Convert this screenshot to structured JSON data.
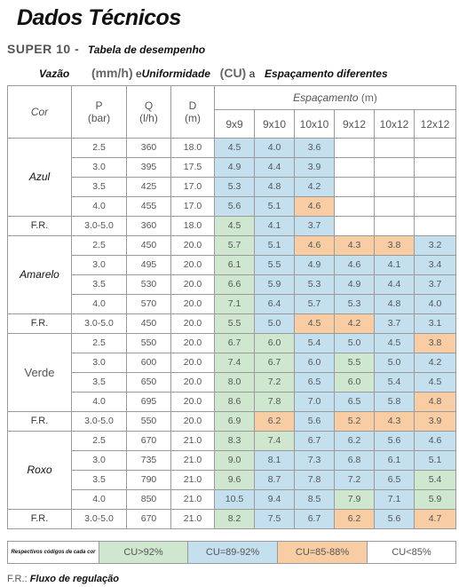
{
  "title": "Dados Técnicos",
  "model": "SUPER 10 -",
  "subtitle_desc": "Tabela de desempenho",
  "line2": {
    "vazao": "Vazão",
    "unit1": "(mm/h)",
    "e": "e",
    "uniformidade": "Uniformidade",
    "cu": "(CU)",
    "a": "a",
    "espacamento": "Espaçamento diferentes"
  },
  "headers": {
    "cor": "Cor",
    "p": "P",
    "p_unit": "(bar)",
    "q": "Q",
    "q_unit": "(l/h)",
    "d": "D",
    "d_unit": "(m)",
    "espacamento": "Espaçamento",
    "esp_unit": "(m)",
    "spacings": [
      "9x9",
      "9x10",
      "10x10",
      "9x12",
      "10x12",
      "12x12"
    ]
  },
  "groups": [
    {
      "name": "Azul",
      "style": "bi",
      "rows": [
        {
          "p": "2.5",
          "q": "360",
          "d": "18.0",
          "v": [
            "4.5",
            "4.0",
            "3.6",
            "",
            "",
            ""
          ],
          "c": [
            "blue",
            "blue",
            "blue",
            "white",
            "white",
            "white"
          ]
        },
        {
          "p": "3.0",
          "q": "395",
          "d": "17.5",
          "v": [
            "4.9",
            "4.4",
            "3.9",
            "",
            "",
            ""
          ],
          "c": [
            "blue",
            "blue",
            "blue",
            "white",
            "white",
            "white"
          ]
        },
        {
          "p": "3.5",
          "q": "425",
          "d": "17.0",
          "v": [
            "5.3",
            "4.8",
            "4.2",
            "",
            "",
            ""
          ],
          "c": [
            "blue",
            "blue",
            "blue",
            "white",
            "white",
            "white"
          ]
        },
        {
          "p": "4.0",
          "q": "455",
          "d": "17.0",
          "v": [
            "5.6",
            "5.1",
            "4.6",
            "",
            "",
            ""
          ],
          "c": [
            "blue",
            "blue",
            "orange",
            "white",
            "white",
            "white"
          ]
        }
      ],
      "fr": {
        "label": "F.R.",
        "p": "3.0-5.0",
        "q": "360",
        "d": "18.0",
        "v": [
          "4.5",
          "4.1",
          "3.7",
          "",
          "",
          ""
        ],
        "c": [
          "green",
          "blue",
          "blue",
          "white",
          "white",
          "white"
        ]
      }
    },
    {
      "name": "Amarelo",
      "style": "bi",
      "rows": [
        {
          "p": "2.5",
          "q": "450",
          "d": "20.0",
          "v": [
            "5.7",
            "5.1",
            "4.6",
            "4.3",
            "3.8",
            "3.2"
          ],
          "c": [
            "green",
            "blue",
            "orange",
            "orange",
            "orange",
            "blue"
          ]
        },
        {
          "p": "3.0",
          "q": "495",
          "d": "20.0",
          "v": [
            "6.1",
            "5.5",
            "4.9",
            "4.6",
            "4.1",
            "3.4"
          ],
          "c": [
            "green",
            "blue",
            "blue",
            "blue",
            "blue",
            "blue"
          ]
        },
        {
          "p": "3.5",
          "q": "530",
          "d": "20.0",
          "v": [
            "6.6",
            "5.9",
            "5.3",
            "4.9",
            "4.4",
            "3.7"
          ],
          "c": [
            "green",
            "blue",
            "blue",
            "blue",
            "blue",
            "blue"
          ]
        },
        {
          "p": "4.0",
          "q": "570",
          "d": "20.0",
          "v": [
            "7.1",
            "6.4",
            "5.7",
            "5.3",
            "4.8",
            "4.0"
          ],
          "c": [
            "green",
            "blue",
            "blue",
            "blue",
            "blue",
            "blue"
          ]
        }
      ],
      "fr": {
        "label": "F.R.",
        "p": "3.0-5.0",
        "q": "450",
        "d": "20.0",
        "v": [
          "5.5",
          "5.0",
          "4.5",
          "4.2",
          "3.7",
          "3.1"
        ],
        "c": [
          "green",
          "blue",
          "orange",
          "orange",
          "blue",
          "blue"
        ]
      }
    },
    {
      "name": "Verde",
      "style": "plain",
      "rows": [
        {
          "p": "2.5",
          "q": "550",
          "d": "20.0",
          "v": [
            "6.7",
            "6.0",
            "5.4",
            "5.0",
            "4.5",
            "3.8"
          ],
          "c": [
            "green",
            "green",
            "blue",
            "blue",
            "blue",
            "orange"
          ]
        },
        {
          "p": "3.0",
          "q": "600",
          "d": "20.0",
          "v": [
            "7.4",
            "6.7",
            "6.0",
            "5.5",
            "5.0",
            "4.2"
          ],
          "c": [
            "green",
            "green",
            "blue",
            "green",
            "blue",
            "blue"
          ]
        },
        {
          "p": "3.5",
          "q": "650",
          "d": "20.0",
          "v": [
            "8.0",
            "7.2",
            "6.5",
            "6.0",
            "5.4",
            "4.5"
          ],
          "c": [
            "green",
            "green",
            "blue",
            "green",
            "blue",
            "blue"
          ]
        },
        {
          "p": "4.0",
          "q": "695",
          "d": "20.0",
          "v": [
            "8.6",
            "7.8",
            "7.0",
            "6.5",
            "5.8",
            "4.8"
          ],
          "c": [
            "green",
            "green",
            "blue",
            "blue",
            "blue",
            "orange"
          ]
        }
      ],
      "fr": {
        "label": "F.R.",
        "p": "3.0-5.0",
        "q": "550",
        "d": "20.0",
        "v": [
          "6.9",
          "6.2",
          "5.6",
          "5.2",
          "4.3",
          "3.9"
        ],
        "c": [
          "green",
          "orange",
          "blue",
          "orange",
          "orange",
          "orange"
        ]
      }
    },
    {
      "name": "Roxo",
      "style": "bi",
      "rows": [
        {
          "p": "2.5",
          "q": "670",
          "d": "21.0",
          "v": [
            "8.3",
            "7.4",
            "6.7",
            "6.2",
            "5.6",
            "4.6"
          ],
          "c": [
            "green",
            "green",
            "blue",
            "blue",
            "blue",
            "blue"
          ]
        },
        {
          "p": "3.0",
          "q": "735",
          "d": "21.0",
          "v": [
            "9.0",
            "8.1",
            "7.3",
            "6.8",
            "6.1",
            "5.1"
          ],
          "c": [
            "green",
            "blue",
            "blue",
            "blue",
            "blue",
            "blue"
          ]
        },
        {
          "p": "3.5",
          "q": "790",
          "d": "21.0",
          "v": [
            "9.6",
            "8.7",
            "7.8",
            "7.2",
            "6.5",
            "5.4"
          ],
          "c": [
            "green",
            "blue",
            "blue",
            "blue",
            "blue",
            "green"
          ]
        },
        {
          "p": "4.0",
          "q": "850",
          "d": "21.0",
          "v": [
            "10.5",
            "9.4",
            "8.5",
            "7.9",
            "7.1",
            "5.9"
          ],
          "c": [
            "blue",
            "blue",
            "blue",
            "green",
            "blue",
            "green"
          ]
        }
      ],
      "fr": {
        "label": "F.R.",
        "p": "3.0-5.0",
        "q": "670",
        "d": "21.0",
        "v": [
          "8.2",
          "7.5",
          "6.7",
          "6.2",
          "5.6",
          "4.7"
        ],
        "c": [
          "green",
          "blue",
          "blue",
          "orange",
          "blue",
          "orange"
        ]
      }
    }
  ],
  "legend": {
    "label": "Respectivos códigos de cada cor",
    "items": [
      {
        "text": "CU>92%",
        "color": "green"
      },
      {
        "text": "CU=89-92%",
        "color": "blue"
      },
      {
        "text": "CU=85-88%",
        "color": "orange"
      },
      {
        "text": "CU<85%",
        "color": "white"
      }
    ]
  },
  "colors": {
    "green": "#cfe7cf",
    "blue": "#c4e0ef",
    "orange": "#f9cda3",
    "white": "#ffffff"
  },
  "footer": {
    "prefix": "F.R.:",
    "text": "Fluxo de regulação"
  }
}
